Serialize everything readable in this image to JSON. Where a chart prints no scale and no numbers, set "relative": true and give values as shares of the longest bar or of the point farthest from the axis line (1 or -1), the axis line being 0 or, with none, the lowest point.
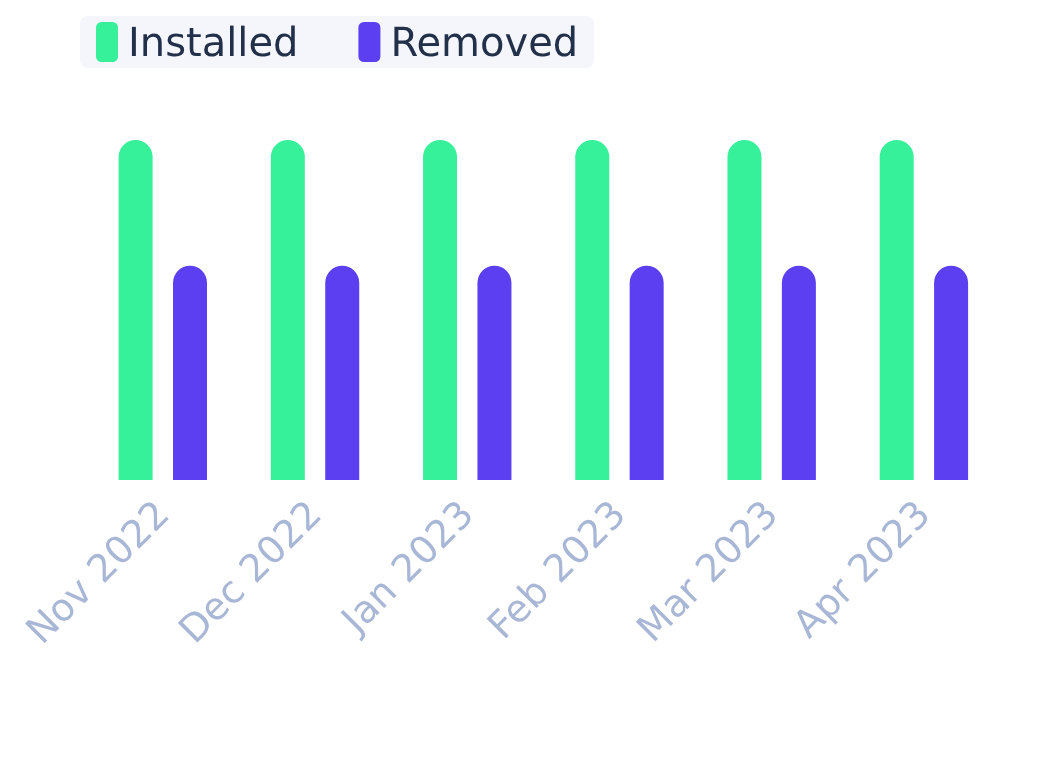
{
  "chart_data": {
    "type": "bar",
    "relative": true,
    "categories": [
      "Nov 2022",
      "Dec 2022",
      "Jan 2023",
      "Feb 2023",
      "Mar 2023",
      "Apr 2023"
    ],
    "series": [
      {
        "name": "Installed",
        "color": "#36f09a",
        "values": [
          1,
          1,
          1,
          1,
          1,
          1
        ]
      },
      {
        "name": "Removed",
        "color": "#5b3ff0",
        "values": [
          0.63,
          0.63,
          0.63,
          0.63,
          0.63,
          0.63
        ]
      }
    ],
    "legend": "top left",
    "grid": false
  }
}
